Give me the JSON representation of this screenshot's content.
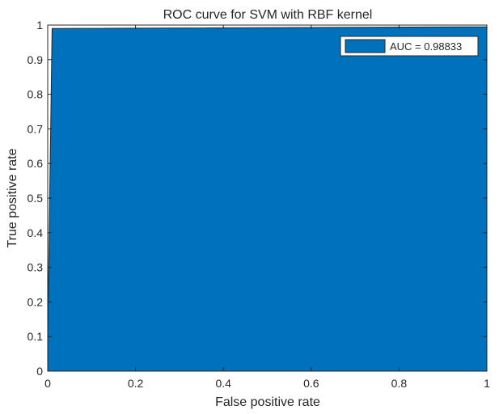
{
  "chart_data": {
    "type": "area",
    "title": "ROC curve for SVM with RBF kernel",
    "xlabel": "False positive rate",
    "ylabel": "True positive rate",
    "xlim": [
      0,
      1
    ],
    "ylim": [
      0,
      1
    ],
    "x_ticks": [
      "0",
      "0.2",
      "0.4",
      "0.6",
      "0.8",
      "1"
    ],
    "y_ticks": [
      "0",
      "0.1",
      "0.2",
      "0.3",
      "0.4",
      "0.5",
      "0.6",
      "0.7",
      "0.8",
      "0.9",
      "1"
    ],
    "grid": false,
    "legend_position": "top-right",
    "series": [
      {
        "name": "AUC = 0.98833",
        "color": "#0072BD",
        "x": [
          0,
          0,
          0.01,
          0.02,
          1,
          1
        ],
        "y": [
          0,
          0.1,
          0.99,
          0.99,
          0.995,
          1
        ]
      }
    ]
  }
}
